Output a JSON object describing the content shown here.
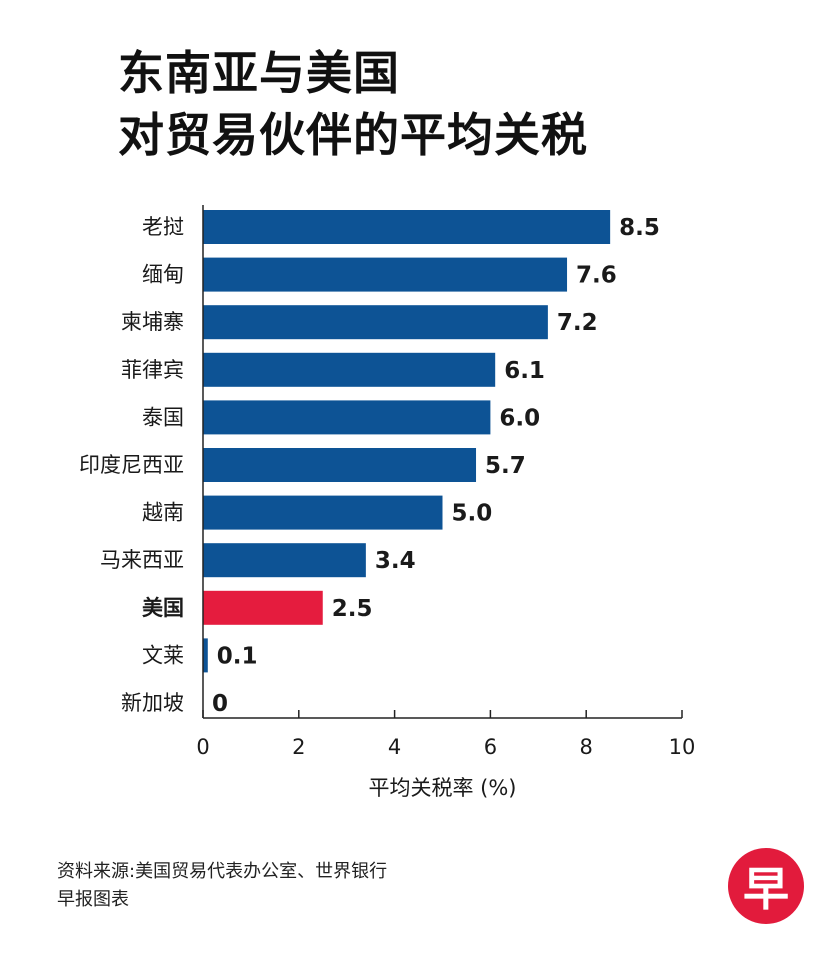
{
  "title_line1": "东南亚与美国",
  "title_line2": "对贸易伙伴的平均关税",
  "chart_data": {
    "type": "bar",
    "orientation": "horizontal",
    "categories": [
      "老挝",
      "缅甸",
      "柬埔寨",
      "菲律宾",
      "泰国",
      "印度尼西亚",
      "越南",
      "马来西亚",
      "美国",
      "文莱",
      "新加坡"
    ],
    "values": [
      8.5,
      7.6,
      7.2,
      6.1,
      6.0,
      5.7,
      5.0,
      3.4,
      2.5,
      0.1,
      0
    ],
    "value_labels": [
      "8.5",
      "7.6",
      "7.2",
      "6.1",
      "6.0",
      "5.7",
      "5.0",
      "3.4",
      "2.5",
      "0.1",
      "0"
    ],
    "highlight": "美国",
    "xlim": [
      0,
      10
    ],
    "xticks": [
      0,
      2,
      4,
      6,
      8,
      10
    ],
    "xlabel": "平均关税率 (%)",
    "grid": false,
    "colors": {
      "bar": "#0d5395",
      "highlight": "#e51c3e"
    }
  },
  "footer": {
    "source": "资料来源:美国贸易代表办公室、世界银行",
    "credit": "早报图表"
  },
  "logo_text": "早"
}
